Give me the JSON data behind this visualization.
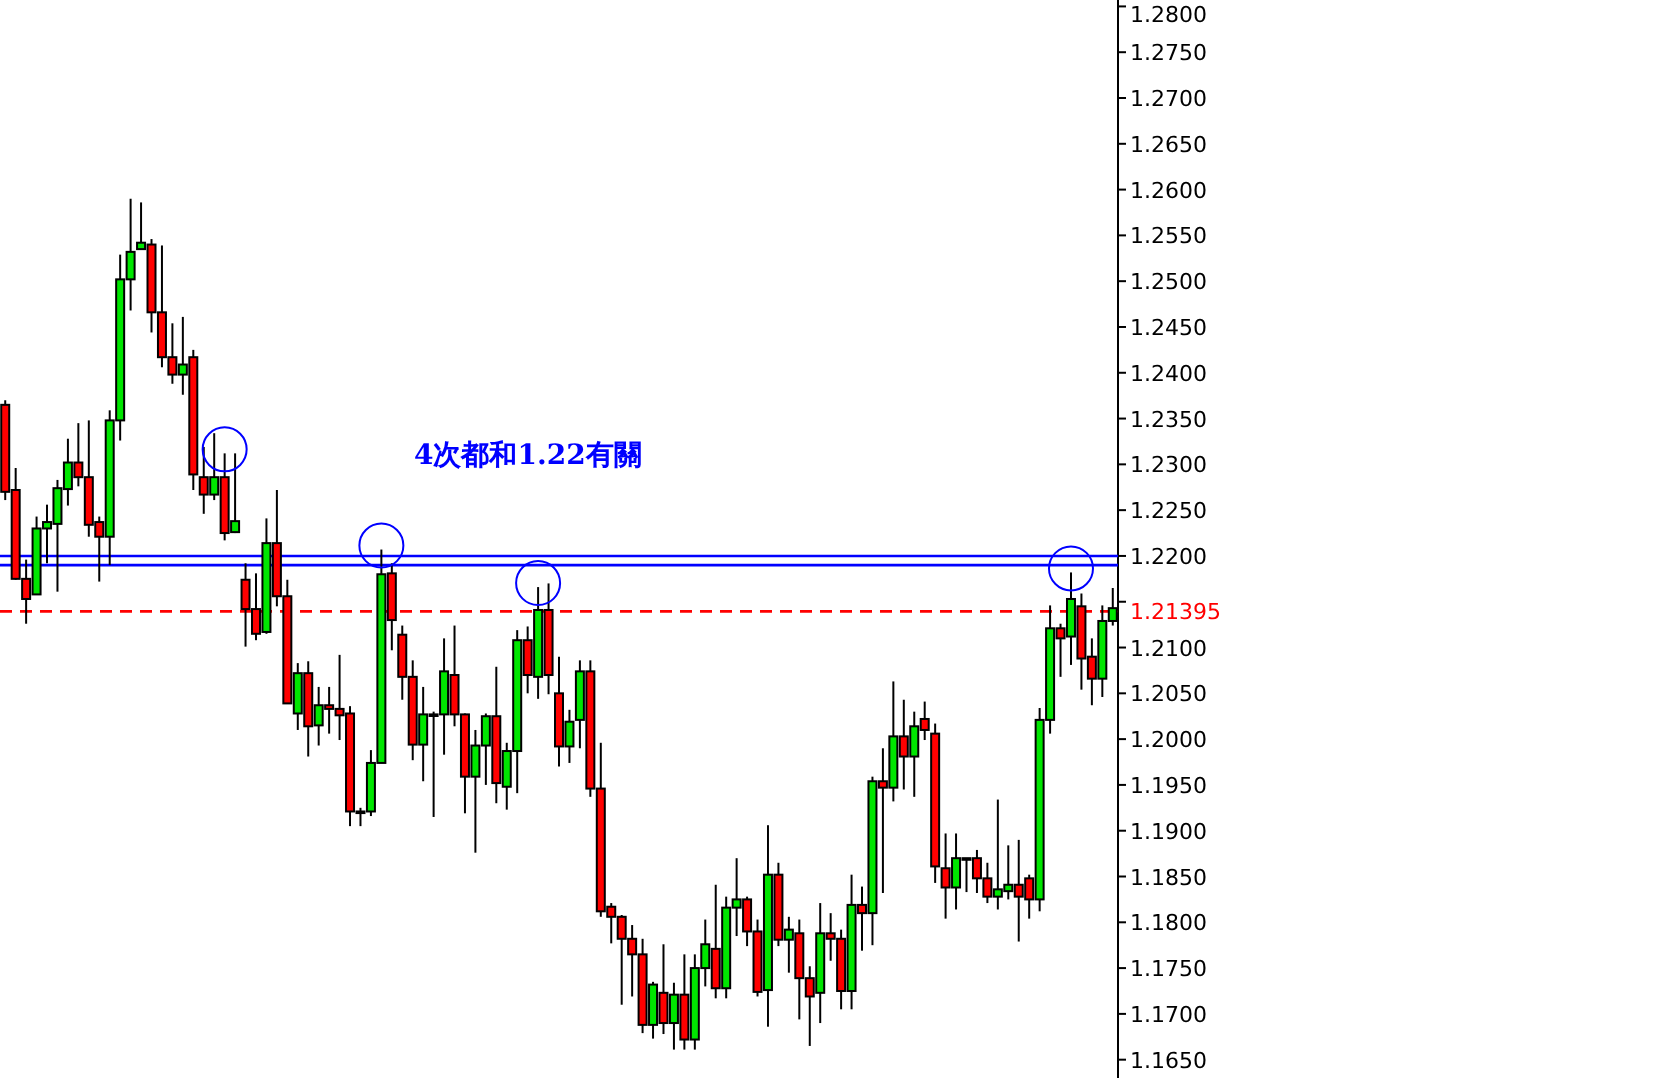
{
  "chart_data": {
    "type": "candlestick",
    "categories": [
      null,
      null,
      null,
      null,
      null,
      null,
      null,
      null,
      null,
      null,
      null,
      null,
      null,
      null,
      null,
      null,
      null,
      null,
      null,
      null,
      null,
      null,
      null,
      null,
      null,
      null,
      null,
      null,
      null,
      null,
      null,
      null,
      null,
      null,
      null,
      null,
      null,
      null,
      null,
      null,
      null,
      null,
      null,
      null,
      null,
      null,
      null,
      null,
      null,
      null,
      null,
      null,
      null,
      null,
      null,
      null,
      null,
      null,
      null,
      null,
      null,
      null,
      null,
      null,
      null,
      null,
      null,
      null,
      null,
      null,
      null,
      null,
      null,
      null,
      null,
      null,
      null,
      null,
      null,
      null,
      null,
      null,
      null,
      null,
      null,
      null,
      null,
      null,
      null,
      null,
      null,
      null,
      null,
      null,
      null,
      null,
      null,
      null,
      null,
      null,
      null,
      null,
      null,
      null,
      null,
      null,
      null
    ],
    "ohlc": [
      [
        1.2365,
        1.237,
        1.2261,
        1.227
      ],
      [
        1.2272,
        1.2296,
        1.2174,
        1.2175
      ],
      [
        1.2175,
        1.2196,
        1.2126,
        1.2153
      ],
      [
        1.2158,
        1.2243,
        1.2158,
        1.223
      ],
      [
        1.223,
        1.2256,
        1.2192,
        1.2237
      ],
      [
        1.2235,
        1.2283,
        1.2161,
        1.2274
      ],
      [
        1.2273,
        1.2328,
        1.2255,
        1.2302
      ],
      [
        1.2302,
        1.2345,
        1.2276,
        1.2286
      ],
      [
        1.2286,
        1.2348,
        1.2221,
        1.2234
      ],
      [
        1.2237,
        1.2243,
        1.2172,
        1.2221
      ],
      [
        1.2221,
        1.2359,
        1.219,
        1.2348
      ],
      [
        1.2348,
        1.2529,
        1.2326,
        1.2502
      ],
      [
        1.2502,
        1.259,
        1.2468,
        1.2532
      ],
      [
        1.2535,
        1.2586,
        1.2535,
        1.2542
      ],
      [
        1.254,
        1.2546,
        1.2444,
        1.2466
      ],
      [
        1.2466,
        1.2539,
        1.2406,
        1.2417
      ],
      [
        1.2417,
        1.2454,
        1.2388,
        1.2398
      ],
      [
        1.2398,
        1.2461,
        1.2376,
        1.2409
      ],
      [
        1.2417,
        1.2425,
        1.2272,
        1.2289
      ],
      [
        1.2286,
        1.2319,
        1.2246,
        1.2267
      ],
      [
        1.2267,
        1.2334,
        1.2261,
        1.2286
      ],
      [
        1.2286,
        1.2312,
        1.2217,
        1.2225
      ],
      [
        1.2226,
        1.2312,
        1.2225,
        1.2238
      ],
      [
        1.2174,
        1.2192,
        1.2101,
        1.2142
      ],
      [
        1.2142,
        1.2181,
        1.2108,
        1.2115
      ],
      [
        1.2117,
        1.2241,
        1.2115,
        1.2214
      ],
      [
        1.2214,
        1.2272,
        1.2145,
        1.2156
      ],
      [
        1.2156,
        1.2174,
        1.2039,
        1.2039
      ],
      [
        1.2028,
        1.2083,
        1.201,
        1.2072
      ],
      [
        1.2072,
        1.2085,
        1.1981,
        1.2014
      ],
      [
        1.2015,
        1.2057,
        1.1993,
        1.2037
      ],
      [
        1.2037,
        1.2057,
        1.2006,
        1.2033
      ],
      [
        1.2033,
        1.2092,
        1.1999,
        1.2026
      ],
      [
        1.2028,
        1.2036,
        1.1905,
        1.1921
      ],
      [
        1.1921,
        1.1925,
        1.1905,
        1.192
      ],
      [
        1.1921,
        1.1988,
        1.1916,
        1.1974
      ],
      [
        1.1974,
        1.2207,
        1.1974,
        1.218
      ],
      [
        1.2181,
        1.2192,
        1.2097,
        1.213
      ],
      [
        1.2114,
        1.2124,
        1.2043,
        1.2068
      ],
      [
        1.2068,
        1.2086,
        1.1977,
        1.1994
      ],
      [
        1.1994,
        1.2057,
        1.1954,
        1.2027
      ],
      [
        1.2027,
        1.203,
        1.1915,
        1.2026
      ],
      [
        1.2027,
        1.211,
        1.1983,
        1.2074
      ],
      [
        1.207,
        1.2124,
        1.2014,
        1.2027
      ],
      [
        1.2027,
        1.2028,
        1.1919,
        1.1959
      ],
      [
        1.1959,
        1.201,
        1.1876,
        1.1993
      ],
      [
        1.1993,
        1.2028,
        1.195,
        1.2025
      ],
      [
        1.2025,
        1.2079,
        1.193,
        1.1952
      ],
      [
        1.1948,
        1.1996,
        1.1923,
        1.1987
      ],
      [
        1.1987,
        1.2119,
        1.1941,
        1.2108
      ],
      [
        1.2108,
        1.2123,
        1.205,
        1.207
      ],
      [
        1.2068,
        1.2166,
        1.2044,
        1.2141
      ],
      [
        1.2141,
        1.217,
        1.2049,
        1.207
      ],
      [
        1.205,
        1.209,
        1.197,
        1.1992
      ],
      [
        1.1992,
        1.2032,
        1.1974,
        1.2019
      ],
      [
        1.2021,
        1.2086,
        1.199,
        1.2074
      ],
      [
        1.2074,
        1.2086,
        1.1937,
        1.1946
      ],
      [
        1.1946,
        1.1996,
        1.1806,
        1.1812
      ],
      [
        1.1817,
        1.1821,
        1.1777,
        1.1806
      ],
      [
        1.1806,
        1.1808,
        1.171,
        1.1782
      ],
      [
        1.1782,
        1.1797,
        1.1719,
        1.1765
      ],
      [
        1.1765,
        1.1782,
        1.1679,
        1.1688
      ],
      [
        1.1688,
        1.1735,
        1.1673,
        1.1732
      ],
      [
        1.1723,
        1.1776,
        1.1678,
        1.169
      ],
      [
        1.169,
        1.1734,
        1.1661,
        1.1721
      ],
      [
        1.1721,
        1.1765,
        1.1661,
        1.1672
      ],
      [
        1.1672,
        1.1765,
        1.1661,
        1.175
      ],
      [
        1.175,
        1.1803,
        1.173,
        1.1776
      ],
      [
        1.1771,
        1.1841,
        1.1717,
        1.1728
      ],
      [
        1.1728,
        1.1828,
        1.1717,
        1.1816
      ],
      [
        1.1816,
        1.187,
        1.1785,
        1.1825
      ],
      [
        1.1825,
        1.1828,
        1.1774,
        1.179
      ],
      [
        1.179,
        1.1803,
        1.1719,
        1.1724
      ],
      [
        1.1726,
        1.1906,
        1.1686,
        1.1852
      ],
      [
        1.1852,
        1.1865,
        1.1774,
        1.1781
      ],
      [
        1.1781,
        1.1806,
        1.1745,
        1.1792
      ],
      [
        1.1788,
        1.1803,
        1.1694,
        1.1739
      ],
      [
        1.1739,
        1.1752,
        1.1665,
        1.1719
      ],
      [
        1.1723,
        1.1821,
        1.169,
        1.1788
      ],
      [
        1.1788,
        1.181,
        1.1758,
        1.1782
      ],
      [
        1.1782,
        1.1792,
        1.1705,
        1.1725
      ],
      [
        1.1725,
        1.1852,
        1.1705,
        1.1819
      ],
      [
        1.1819,
        1.1839,
        1.1769,
        1.181
      ],
      [
        1.181,
        1.1959,
        1.1775,
        1.1954
      ],
      [
        1.1954,
        1.199,
        1.1832,
        1.1947
      ],
      [
        1.1947,
        1.2063,
        1.1932,
        1.2003
      ],
      [
        1.2003,
        1.2043,
        1.1945,
        1.1981
      ],
      [
        1.1981,
        1.203,
        1.1937,
        1.2014
      ],
      [
        1.2022,
        1.2041,
        1.1999,
        1.201
      ],
      [
        1.2006,
        1.2017,
        1.1843,
        1.1861
      ],
      [
        1.1859,
        1.1897,
        1.1804,
        1.1838
      ],
      [
        1.1838,
        1.1897,
        1.1814,
        1.187
      ],
      [
        1.187,
        1.187,
        1.1833,
        1.1869
      ],
      [
        1.187,
        1.1879,
        1.1832,
        1.1848
      ],
      [
        1.1848,
        1.1865,
        1.1821,
        1.1828
      ],
      [
        1.1828,
        1.1934,
        1.1814,
        1.1836
      ],
      [
        1.1834,
        1.1884,
        1.1825,
        1.1841
      ],
      [
        1.1841,
        1.189,
        1.1779,
        1.1828
      ],
      [
        1.1848,
        1.1852,
        1.1804,
        1.1825
      ],
      [
        1.1825,
        1.2034,
        1.1812,
        1.2021
      ],
      [
        1.2021,
        1.2146,
        1.2006,
        1.2121
      ],
      [
        1.2121,
        1.2126,
        1.2068,
        1.211
      ],
      [
        1.2112,
        1.2182,
        1.2081,
        1.2153
      ],
      [
        1.2145,
        1.2159,
        1.2054,
        1.2088
      ],
      [
        1.209,
        1.211,
        1.2037,
        1.2066
      ],
      [
        1.2066,
        1.2146,
        1.2046,
        1.2129
      ],
      [
        1.2129,
        1.2165,
        1.2124,
        1.2143
      ]
    ],
    "ylim": [
      1.163,
      1.2807
    ],
    "yticks": [
      {
        "value": 1.165,
        "label": "1.1650"
      },
      {
        "value": 1.17,
        "label": "1.1700"
      },
      {
        "value": 1.175,
        "label": "1.1750"
      },
      {
        "value": 1.18,
        "label": "1.1800"
      },
      {
        "value": 1.185,
        "label": "1.1850"
      },
      {
        "value": 1.19,
        "label": "1.1900"
      },
      {
        "value": 1.195,
        "label": "1.1950"
      },
      {
        "value": 1.2,
        "label": "1.2000"
      },
      {
        "value": 1.205,
        "label": "1.2050"
      },
      {
        "value": 1.21,
        "label": "1.2100"
      },
      {
        "value": 1.215,
        "label": null
      },
      {
        "value": 1.22,
        "label": "1.2200"
      },
      {
        "value": 1.225,
        "label": "1.2250"
      },
      {
        "value": 1.23,
        "label": "1.2300"
      },
      {
        "value": 1.235,
        "label": "1.2350"
      },
      {
        "value": 1.24,
        "label": "1.2400"
      },
      {
        "value": 1.245,
        "label": "1.2450"
      },
      {
        "value": 1.25,
        "label": "1.2500"
      },
      {
        "value": 1.255,
        "label": "1.2550"
      },
      {
        "value": 1.26,
        "label": "1.2600"
      },
      {
        "value": 1.265,
        "label": "1.2650"
      },
      {
        "value": 1.27,
        "label": "1.2700"
      },
      {
        "value": 1.275,
        "label": "1.2750"
      },
      {
        "value": 1.28,
        "label": "1.2800"
      }
    ],
    "ref_lines": [
      {
        "axis": "y",
        "value": 1.21395,
        "label": "1.21395",
        "color": "#ff0000",
        "line_style": "dashed"
      },
      {
        "axis": "y",
        "value": 1.22,
        "color": "#0000ff",
        "line_style": "solid"
      },
      {
        "axis": "y",
        "value": 1.219,
        "color": "#0000ff",
        "line_style": "solid"
      }
    ],
    "annotations": [
      "4次都和1.22有關"
    ],
    "tick_labels": "y"
  }
}
